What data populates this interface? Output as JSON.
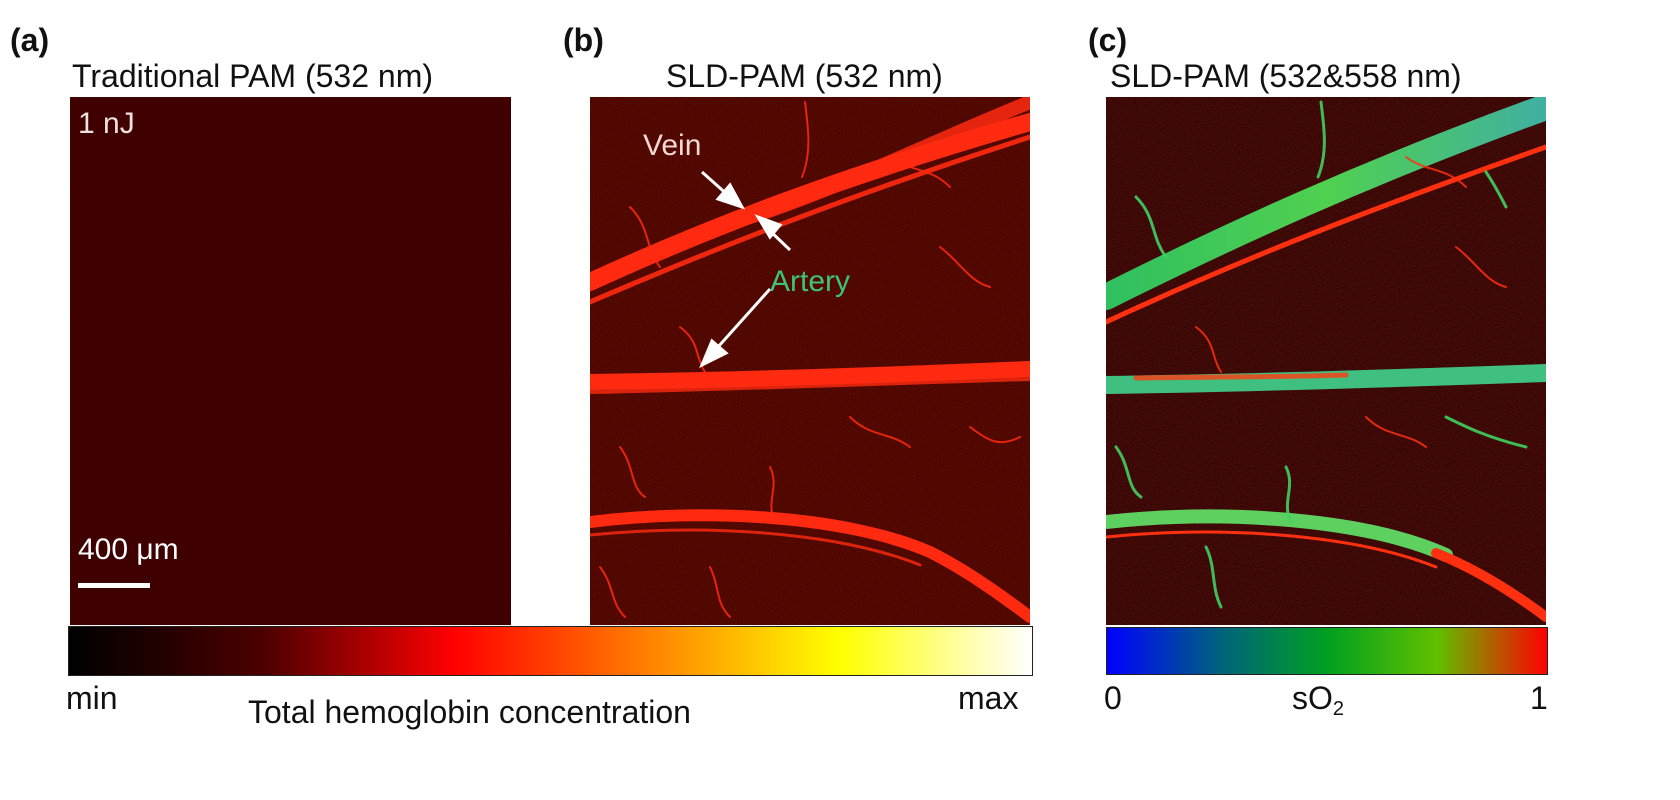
{
  "panels": [
    {
      "label": "(a)",
      "title": "Traditional PAM (532 nm)",
      "energy": "1 nJ",
      "scalebar": "400 μm"
    },
    {
      "label": "(b)",
      "title": "SLD-PAM (532 nm)",
      "annotations": {
        "vein": "Vein",
        "artery": "Artery"
      }
    },
    {
      "label": "(c)",
      "title": "SLD-PAM (532&558 nm)"
    }
  ],
  "colorbar_hb": {
    "min": "min",
    "max": "max",
    "label": "Total hemoglobin concentration",
    "colors": [
      "#000000",
      "#4a0000",
      "#ff0000",
      "#ff8000",
      "#ffff00",
      "#ffffff"
    ]
  },
  "colorbar_so2": {
    "min": "0",
    "max": "1",
    "label_main": "sO",
    "label_sub": "2",
    "colors": [
      "#0000ff",
      "#006080",
      "#00a020",
      "#60c000",
      "#ff0000"
    ]
  },
  "colors": {
    "background_dark": "#3a0000",
    "vein_red": "#ff2a10",
    "artery_green": "#3ec47a",
    "vein_label": "#f5d6d0"
  }
}
